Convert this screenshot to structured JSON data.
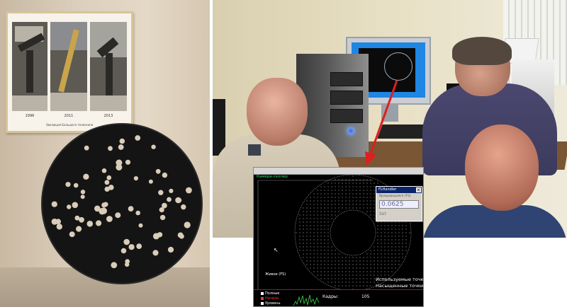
{
  "scene": {
    "colors": {
      "wall": "#ddd0bd",
      "poster_frame": "#d7c49b",
      "disk": "#141414",
      "screen_background": "#000000",
      "screen_dots": "#d9d9d9",
      "dialog_titlebar": "#0a246a",
      "arrow": "#e01e1e",
      "pane_title": "#2fe06a",
      "legend_red": "#ff3030"
    },
    "icons": [
      "mouse-cursor-icon",
      "close-icon"
    ]
  },
  "poster": {
    "captions": [
      "1996",
      "2011",
      "2013"
    ],
    "footer": "Эволюция Большого телескопа"
  },
  "screen": {
    "pane_title": "Камера-скопер",
    "dialog": {
      "title": "FLHandler",
      "label": "Вращающаяся (FS)",
      "value": "0.0625",
      "button": "Set",
      "close_glyph": "×"
    },
    "cursor_glyph": "↖",
    "live_label": "Живое (FS)",
    "used_points": "Используемые точки",
    "saturated_points": "Насыщенные точки",
    "legend": [
      {
        "label": "Полные",
        "color": "#ffffff"
      },
      {
        "label": "Начала",
        "color": "#ff3030"
      },
      {
        "label": "Уровень",
        "color": "#ffffff"
      }
    ],
    "frames_label": "Кадры:",
    "frames_value": "105"
  }
}
